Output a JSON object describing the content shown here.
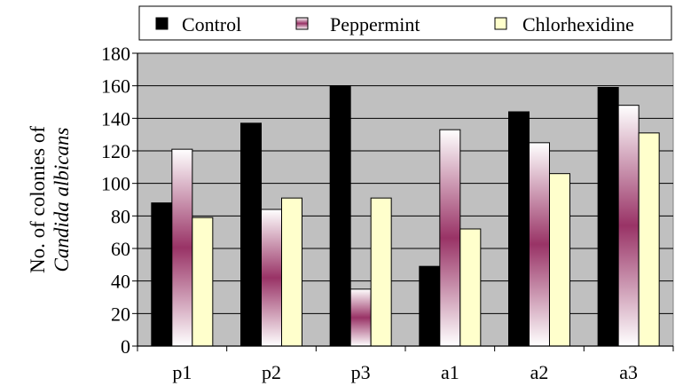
{
  "chart_data": {
    "type": "bar",
    "title": "",
    "xlabel": "",
    "ylabel_line1": "No. of colonies of",
    "ylabel_line2": "Candida albicans",
    "ylim": [
      0,
      180
    ],
    "ytick_step": 20,
    "yticks": [
      "0",
      "20",
      "40",
      "60",
      "80",
      "100",
      "120",
      "140",
      "160",
      "180"
    ],
    "grid": true,
    "legend_position": "top",
    "categories": [
      "p1",
      "p2",
      "p3",
      "a1",
      "a2",
      "a3"
    ],
    "series": [
      {
        "name": "Control",
        "values": [
          88,
          137,
          160,
          49,
          144,
          159
        ]
      },
      {
        "name": "Peppermint",
        "values": [
          121,
          84,
          35,
          133,
          125,
          148
        ]
      },
      {
        "name": "Chlorhexidine",
        "values": [
          79,
          91,
          91,
          72,
          106,
          131
        ]
      }
    ],
    "colors": {
      "plot_background": "#c0c0c0",
      "control": "#000000",
      "peppermint_light": "#ffffff",
      "peppermint_dark": "#993366",
      "chlorhexidine": "#ffffcc"
    }
  }
}
